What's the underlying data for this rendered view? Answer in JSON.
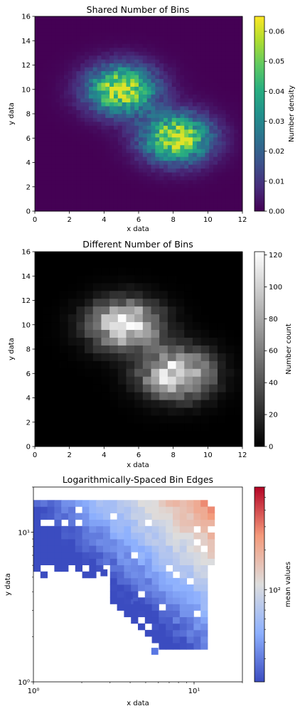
{
  "chart_data": [
    {
      "type": "heatmap",
      "title": "Shared Number of Bins",
      "xlabel": "x data",
      "ylabel": "y data",
      "xlim": [
        0,
        12
      ],
      "ylim": [
        0,
        16
      ],
      "xticks": [
        "0",
        "2",
        "4",
        "6",
        "8",
        "10",
        "12"
      ],
      "yticks": [
        "0",
        "2",
        "4",
        "6",
        "8",
        "10",
        "12",
        "14",
        "16"
      ],
      "bins": [
        50,
        50
      ],
      "colormap": "viridis",
      "colorbar": {
        "label": "Number density",
        "range": [
          0,
          0.065
        ],
        "ticks": [
          "0.00",
          "0.01",
          "0.02",
          "0.03",
          "0.04",
          "0.05",
          "0.06"
        ]
      },
      "clusters": [
        {
          "center": [
            5,
            10
          ],
          "peak_density": 0.062
        },
        {
          "center": [
            8.2,
            6
          ],
          "peak_density": 0.058
        }
      ]
    },
    {
      "type": "heatmap",
      "title": "Different Number of Bins",
      "xlabel": "x data",
      "ylabel": "y data",
      "xlim": [
        0,
        12
      ],
      "ylim": [
        0,
        16
      ],
      "xticks": [
        "0",
        "2",
        "4",
        "6",
        "8",
        "10",
        "12"
      ],
      "yticks": [
        "0",
        "2",
        "4",
        "6",
        "8",
        "10",
        "12",
        "14",
        "16"
      ],
      "bins": [
        25,
        25
      ],
      "colormap": "gray",
      "colorbar": {
        "label": "Number count",
        "range": [
          0,
          122
        ],
        "ticks": [
          "0",
          "20",
          "40",
          "60",
          "80",
          "100",
          "120"
        ]
      },
      "clusters": [
        {
          "center": [
            5.2,
            10
          ],
          "peak_count": 120
        },
        {
          "center": [
            8.2,
            6
          ],
          "peak_count": 110
        }
      ]
    },
    {
      "type": "heatmap",
      "title": "Logarithmically-Spaced Bin Edges",
      "xlabel": "x data",
      "ylabel": "y data",
      "xscale": "log",
      "yscale": "log",
      "xlim": [
        1,
        20
      ],
      "ylim": [
        1,
        20
      ],
      "xticks": [
        "10⁰",
        "10¹"
      ],
      "yticks": [
        "10⁰",
        "10¹"
      ],
      "colormap": "coolwarm",
      "colorbar": {
        "label": "mean values",
        "scale": "log",
        "range": [
          20,
          600
        ],
        "ticks": [
          "10²"
        ]
      },
      "outliers_low": [
        [
          2.75,
          5.35
        ],
        [
          3.95,
          3.75
        ],
        [
          4.4,
          3.28
        ],
        [
          5.7,
          1.6
        ]
      ]
    }
  ]
}
